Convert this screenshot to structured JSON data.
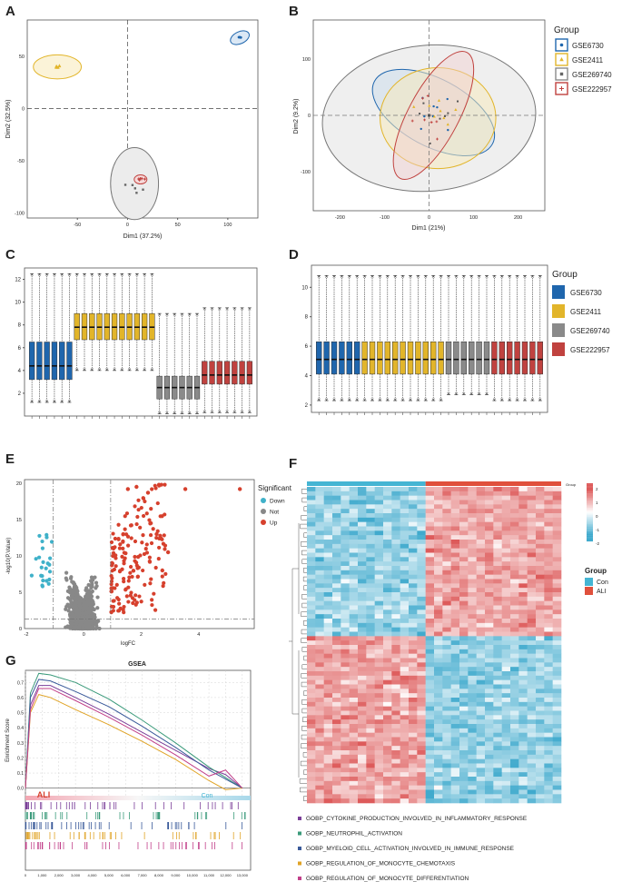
{
  "panels": {
    "A": "A",
    "B": "B",
    "C": "C",
    "D": "D",
    "E": "E",
    "F": "F",
    "G": "G",
    "overlay": "E"
  },
  "colors": {
    "gse6730": "#1f66ad",
    "gse2411": "#e2b52a",
    "gse269740": "#8a8a8a",
    "gse222957": "#c0423f",
    "down": "#3fb1c9",
    "not": "#888888",
    "up": "#d6402d",
    "con": "#45b5d3",
    "ali": "#e0503c"
  },
  "pcaA": {
    "xlabel": "Dim1 (37.2%)",
    "ylabel": "Dim2 (32.5%)",
    "xticks": [
      "-50",
      "0",
      "50",
      "100"
    ],
    "yticks": [
      "50",
      "0",
      "-50",
      "-100"
    ]
  },
  "pcaB": {
    "xlabel": "Dim1 (21%)",
    "ylabel": "Dim2 (9.2%)",
    "xticks": [
      "-200",
      "-100",
      "0",
      "100",
      "200"
    ],
    "yticks": [
      "100",
      "0",
      "-100"
    ]
  },
  "legendGroup": {
    "title": "Group",
    "items": [
      "GSE6730",
      "GSE2411",
      "GSE269740",
      "GSE222957"
    ]
  },
  "boxC": {
    "yticks": [
      "12",
      "10",
      "8",
      "6",
      "4",
      "2"
    ]
  },
  "boxD": {
    "yticks": [
      "10",
      "8",
      "6",
      "4",
      "2"
    ]
  },
  "volcano": {
    "xlabel": "logFC",
    "ylabel": "-log10(P.Value)",
    "xticks": [
      "-2",
      "0",
      "2",
      "4"
    ],
    "yticks": [
      "20",
      "15",
      "10",
      "5",
      "0"
    ],
    "legend": {
      "title": "Significant",
      "items": [
        "Down",
        "Not",
        "Up"
      ]
    }
  },
  "heatmap": {
    "group_label": "Group",
    "scale": [
      "2",
      "1",
      "0",
      "-1",
      "-2"
    ],
    "legend": {
      "title": "Group",
      "items": [
        "Con",
        "ALI"
      ]
    }
  },
  "gsea": {
    "title": "GSEA",
    "ylabel": "Enrichment Score",
    "yticks": [
      "0.7",
      "0.6",
      "0.5",
      "0.4",
      "0.3",
      "0.2",
      "0.1",
      "0.0"
    ],
    "xticks": [
      "0",
      "1,000",
      "2,000",
      "3,000",
      "4,000",
      "5,000",
      "6,000",
      "7,000",
      "8,000",
      "9,000",
      "10,000",
      "11,000",
      "12,000",
      "13,000"
    ],
    "left_label": "ALI",
    "right_label": "Con",
    "pathways": [
      {
        "name": "GOBP_CYTOKINE_PRODUCTION_INVOLVED_IN_INFLAMMATORY_RESPONSE",
        "color": "#7b3f99"
      },
      {
        "name": "GOBP_NEUTROPHIL_ACTIVATION",
        "color": "#3a9a7a"
      },
      {
        "name": "GOBP_MYELOID_CELL_ACTIVATION_INVOLVED_IN_IMMUNE_RESPONSE",
        "color": "#3a5a9a"
      },
      {
        "name": "GOBP_REGULATION_OF_MONOCYTE_CHEMOTAXIS",
        "color": "#e0a325"
      },
      {
        "name": "GOBP_REGULATION_OF_MONOCYTE_DIFFERENTIATION",
        "color": "#c2408a"
      }
    ]
  },
  "chart_data": [
    {
      "type": "scatter",
      "title": "A",
      "xlabel": "Dim1 (37.2%)",
      "ylabel": "Dim2 (32.5%)",
      "xlim": [
        -100,
        130
      ],
      "ylim": [
        -105,
        85
      ],
      "series": [
        {
          "name": "GSE6730",
          "center": [
            112,
            68
          ]
        },
        {
          "name": "GSE2411",
          "center": [
            -70,
            40
          ]
        },
        {
          "name": "GSE269740",
          "center": [
            5,
            -72
          ]
        },
        {
          "name": "GSE222957",
          "center": [
            12,
            -68
          ]
        }
      ]
    },
    {
      "type": "scatter",
      "title": "B",
      "xlabel": "Dim1 (21%)",
      "ylabel": "Dim2 (9.2%)",
      "xlim": [
        -260,
        260
      ],
      "ylim": [
        -170,
        170
      ],
      "series": [
        {
          "name": "GSE6730"
        },
        {
          "name": "GSE2411"
        },
        {
          "name": "GSE269740"
        },
        {
          "name": "GSE222957"
        }
      ]
    },
    {
      "type": "box",
      "title": "C",
      "ylim": [
        0,
        13
      ],
      "groups": [
        {
          "name": "GSE6730",
          "n": 6,
          "q1": 3.2,
          "median": 4.4,
          "q3": 6.5,
          "wlo": 1.2,
          "whi": 12.5
        },
        {
          "name": "GSE2411",
          "n": 11,
          "q1": 6.7,
          "median": 7.8,
          "q3": 9.0,
          "wlo": 4.0,
          "whi": 12.5
        },
        {
          "name": "GSE269740",
          "n": 6,
          "q1": 1.5,
          "median": 2.5,
          "q3": 3.5,
          "wlo": 0.2,
          "whi": 9.0
        },
        {
          "name": "GSE222957",
          "n": 7,
          "q1": 2.8,
          "median": 3.6,
          "q3": 4.8,
          "wlo": 0.3,
          "whi": 9.5
        }
      ]
    },
    {
      "type": "box",
      "title": "D",
      "ylim": [
        1.5,
        11.5
      ],
      "groups": [
        {
          "name": "GSE6730",
          "n": 6
        },
        {
          "name": "GSE2411",
          "n": 11
        },
        {
          "name": "GSE269740",
          "n": 6
        },
        {
          "name": "GSE222957",
          "n": 7
        }
      ],
      "q1": 4.1,
      "median": 5.1,
      "q3": 6.3,
      "wlo": 2.3,
      "whi": 10.8
    },
    {
      "type": "scatter",
      "title": "E",
      "xlabel": "logFC",
      "ylabel": "-log10(P.Value)",
      "xlim": [
        -2,
        6
      ],
      "ylim": [
        0,
        20.5
      ],
      "thresholds": {
        "logFC": [
          -1,
          1
        ],
        "pvalue_line": 1.3
      }
    },
    {
      "type": "heatmap",
      "title": "F",
      "scale": [
        -2,
        2
      ],
      "groups": [
        "Con",
        "ALI"
      ]
    },
    {
      "type": "line",
      "title": "GSEA",
      "xlabel": "",
      "ylabel": "Enrichment Score",
      "xlim": [
        0,
        13500
      ],
      "ylim": [
        -0.05,
        0.78
      ],
      "series": [
        {
          "name": "GOBP_CYTOKINE_PRODUCTION_INVOLVED_IN_INFLAMMATORY_RESPONSE",
          "x": [
            0,
            300,
            800,
            1500,
            3000,
            5000,
            7000,
            9000,
            11000,
            12000,
            13000
          ],
          "y": [
            0,
            0.55,
            0.68,
            0.68,
            0.6,
            0.49,
            0.37,
            0.25,
            0.13,
            0.09,
            0
          ]
        },
        {
          "name": "GOBP_NEUTROPHIL_ACTIVATION",
          "x": [
            0,
            300,
            800,
            1500,
            3000,
            5000,
            7000,
            9000,
            11000,
            12000,
            13000
          ],
          "y": [
            0,
            0.63,
            0.76,
            0.75,
            0.7,
            0.59,
            0.45,
            0.3,
            0.14,
            0.07,
            0
          ]
        },
        {
          "name": "GOBP_MYELOID_CELL_ACTIVATION_INVOLVED_IN_IMMUNE_RESPONSE",
          "x": [
            0,
            300,
            800,
            1500,
            3000,
            5000,
            7000,
            9000,
            11000,
            12000,
            13000
          ],
          "y": [
            0,
            0.6,
            0.72,
            0.71,
            0.64,
            0.54,
            0.41,
            0.27,
            0.12,
            0.06,
            0
          ]
        },
        {
          "name": "GOBP_REGULATION_OF_MONOCYTE_CHEMOTAXIS",
          "x": [
            0,
            300,
            800,
            1500,
            3000,
            5000,
            7000,
            9000,
            11000,
            12000,
            13000
          ],
          "y": [
            0,
            0.5,
            0.62,
            0.6,
            0.52,
            0.42,
            0.31,
            0.19,
            0.05,
            -0.01,
            0
          ]
        },
        {
          "name": "GOBP_REGULATION_OF_MONOCYTE_DIFFERENTIATION",
          "x": [
            0,
            300,
            800,
            1500,
            3000,
            5000,
            7000,
            9000,
            11000,
            12000,
            13000
          ],
          "y": [
            0,
            0.52,
            0.66,
            0.66,
            0.58,
            0.47,
            0.35,
            0.22,
            0.08,
            0.12,
            0
          ]
        }
      ]
    }
  ]
}
